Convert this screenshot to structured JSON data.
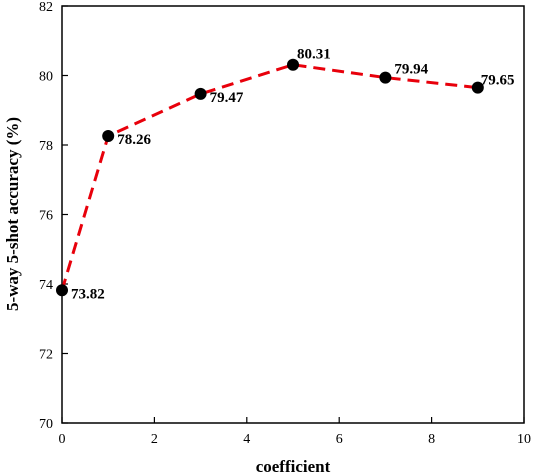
{
  "chart_data": {
    "type": "line",
    "xlabel": "coefficient",
    "ylabel": "5-way 5-shot accuracy (%)",
    "xlim": [
      0,
      10
    ],
    "ylim": [
      70,
      82
    ],
    "xticks": [
      0,
      2,
      4,
      6,
      8,
      10
    ],
    "yticks": [
      70,
      72,
      74,
      76,
      78,
      80,
      82
    ],
    "grid": false,
    "series": [
      {
        "x": [
          0,
          1,
          3,
          5,
          7,
          9
        ],
        "y": [
          73.82,
          78.26,
          79.47,
          80.31,
          79.94,
          79.65
        ],
        "labels": [
          "73.82",
          "78.26",
          "79.47",
          "80.31",
          "79.94",
          "79.65"
        ],
        "line_color": "#e8000b",
        "line_style": "dashed",
        "marker_color": "#000000",
        "marker": "circle"
      }
    ]
  }
}
